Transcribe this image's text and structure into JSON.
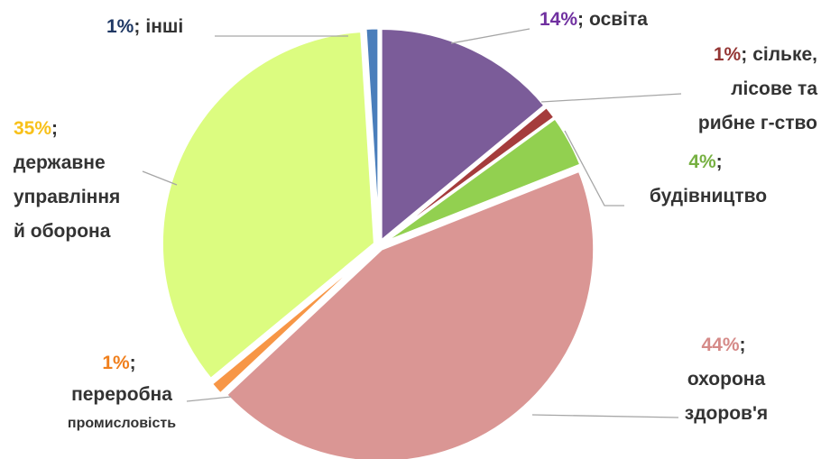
{
  "chart_data": {
    "type": "pie",
    "categories": [
      "освіта",
      "сільке,\nлісове та\nрибне г-ство",
      "будівництво",
      "охорона\nздоров'я",
      "переробна\nпромисловість",
      "державне\nуправління\nй оборона",
      "інші"
    ],
    "values": [
      14,
      1,
      4,
      44,
      1,
      35,
      1
    ],
    "value_labels": [
      "14%",
      "1%",
      "4%",
      "44%",
      "1%",
      "35%",
      "1%"
    ],
    "separator": ";",
    "colors": [
      "#7b5c99",
      "#a53c3c",
      "#92d050",
      "#da9694",
      "#f79646",
      "#dcfc80",
      "#4a7ebb"
    ],
    "label_colors": [
      "#7030a0",
      "#943634",
      "#76b041",
      "#d58a88",
      "#f07f1c",
      "#f8c11a",
      "#1f3864"
    ]
  }
}
